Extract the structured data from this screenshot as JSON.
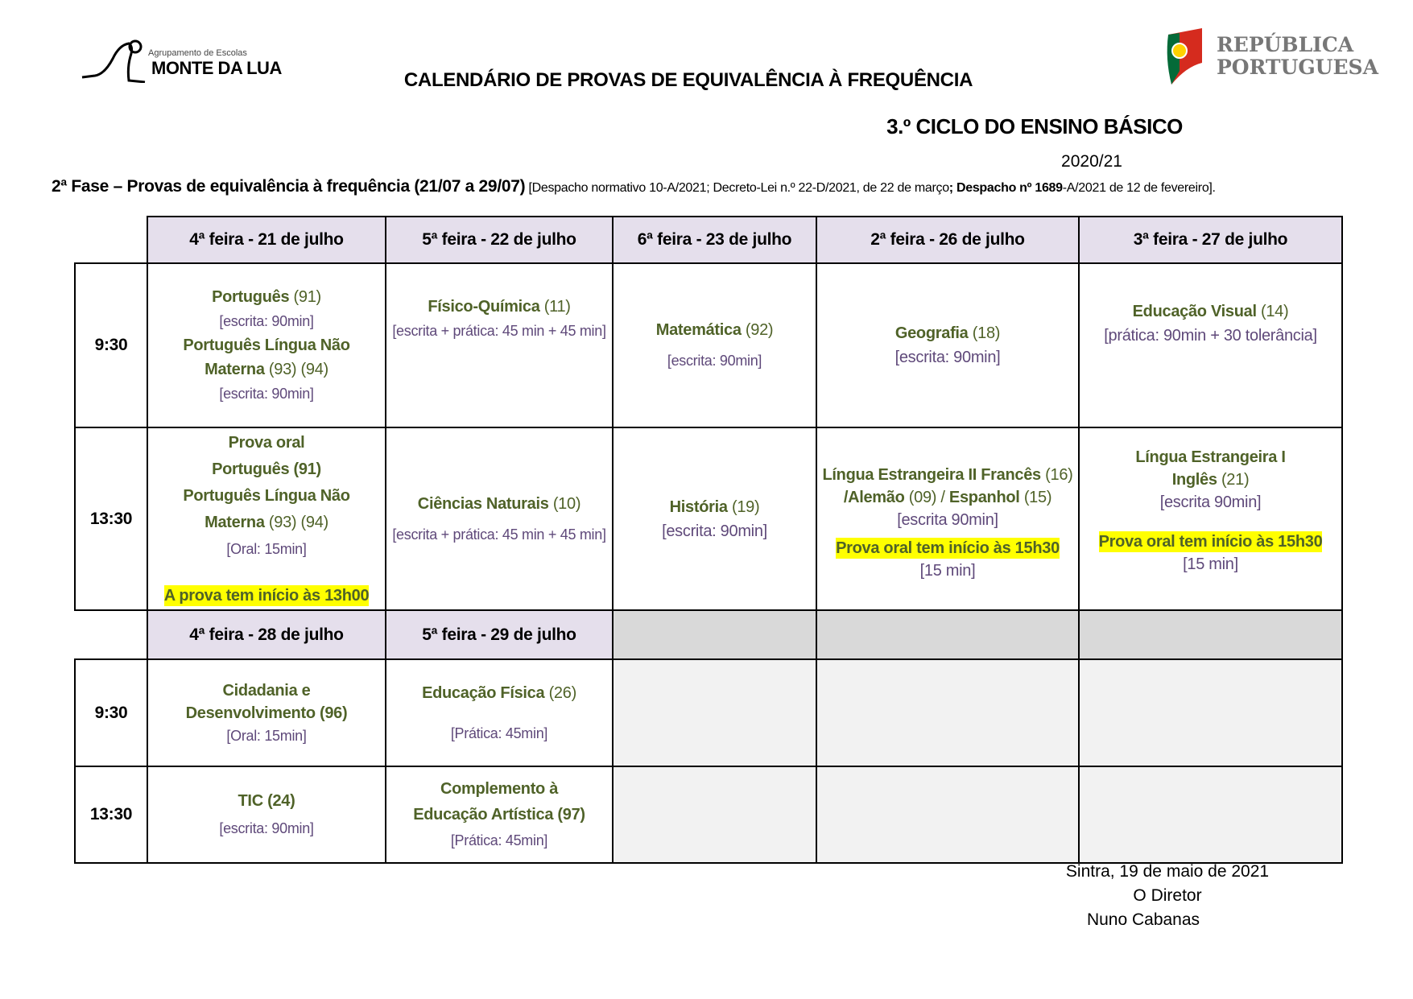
{
  "logos": {
    "school_small": "Agrupamento de Escolas",
    "school_name": "MONTE DA LUA",
    "gov_line1": "REPÚBLICA",
    "gov_line2": "PORTUGUESA"
  },
  "title": "CALENDÁRIO DE PROVAS DE EQUIVALÊNCIA À FREQUÊNCIA",
  "cycle": "3.º CICLO DO ENSINO BÁSICO",
  "year": "2020/21",
  "phase": {
    "main": "2ª Fase – Provas de equivalência à frequência (21/07 a 29/07)",
    "ref_a": " [Despacho normativo 10-A/2021; Decreto-Lei n.º 22-D/2021, de 22 de março",
    "ref_b": "; Despacho nº 1689",
    "ref_c": "-A/2021 de 12 de fevereiro]."
  },
  "week1": {
    "days": [
      "4ª feira - 21 de julho",
      "5ª feira - 22 de julho",
      "6ª feira - 23 de julho",
      "2ª feira - 26 de julho",
      "3ª feira - 27 de julho"
    ]
  },
  "week2": {
    "days": [
      "4ª feira - 28 de julho",
      "5ª feira - 29 de julho"
    ]
  },
  "times": [
    "9:30",
    "13:30"
  ],
  "w1am": {
    "c1": {
      "s1": "Português",
      "c1": " (91)",
      "d1": "[escrita: 90min]",
      "s2": "Português Língua Não Materna",
      "c2": " (93) (94)",
      "d2": "[escrita: 90min]"
    },
    "c2": {
      "s": "Físico-Química",
      "c": " (11)",
      "d": "[escrita + prática: 45 min + 45 min]"
    },
    "c3": {
      "s": "Matemática",
      "c": " (92)",
      "d": "[escrita: 90min]"
    },
    "c4": {
      "s": "Geografia",
      "c": " (18)",
      "d": "[escrita: 90min]"
    },
    "c5": {
      "s": "Educação Visual",
      "c": " (14)",
      "d": "[prática: 90min + 30 tolerância]"
    }
  },
  "w1pm": {
    "c1": {
      "s0": "Prova oral",
      "s1": "Português (91)",
      "s2": "Português Língua Não Materna",
      "c2": " (93) (94)",
      "d": "[Oral: 15min]",
      "note": "A prova tem início às 13h00"
    },
    "c2": {
      "s": "Ciências Naturais",
      "c": " (10)",
      "d": "[escrita + prática: 45 min + 45 min]"
    },
    "c3": {
      "s": "História",
      "c": " (19)",
      "d": "[escrita: 90min]"
    },
    "c4": {
      "s1": "Língua Estrangeira II Francês",
      "c1": " (16) ",
      "s2": "/Alemão",
      "c2": " (09) / ",
      "s3": "Espanhol",
      "c3": " (15)",
      "d": "[escrita 90min]",
      "note": "Prova oral tem início às 15h30",
      "d2": "[15 min]"
    },
    "c5": {
      "s1": "Língua Estrangeira I",
      "s2": "Inglês",
      "c2": " (21)",
      "d": "[escrita 90min]",
      "note": "Prova oral tem início às 15h30",
      "d2": "[15 min]"
    }
  },
  "w2am": {
    "c1": {
      "s": "Cidadania e Desenvolvimento (96)",
      "d": "[Oral: 15min]"
    },
    "c2": {
      "s": "Educação Física",
      "c": " (26)",
      "d": "[Prática: 45min]"
    }
  },
  "w2pm": {
    "c1": {
      "s": "TIC (24)",
      "d": "[escrita: 90min]"
    },
    "c2": {
      "s": "Complemento à Educação Artística (97)",
      "d": "[Prática: 45min]"
    }
  },
  "signature": {
    "place_date": "Sintra, 19 de maio de 2021",
    "role": "O Diretor",
    "name": "Nuno Cabanas"
  }
}
